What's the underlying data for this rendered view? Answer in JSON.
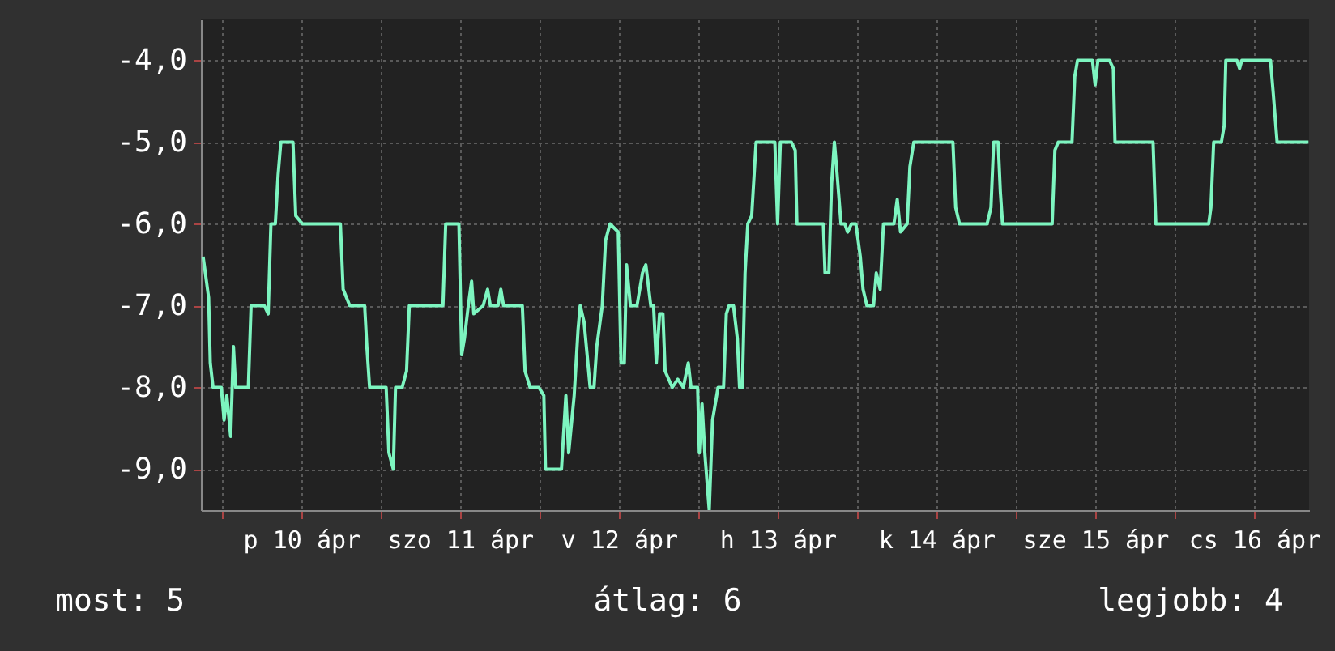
{
  "chart_data": {
    "type": "line",
    "color": "#7df5c0",
    "x": [
      "--04-09T21:10",
      "--04-09T21:30",
      "--04-09T22:00",
      "--04-09T22:15",
      "--04-09T22:40",
      "--04-09T23:55",
      "--04-10T00:20",
      "--04-10T00:45",
      "--04-10T01:20",
      "--04-10T01:45",
      "--04-10T02:05",
      "--04-10T04:00",
      "--04-10T04:25",
      "--04-10T06:25",
      "--04-10T07:00",
      "--04-10T07:25",
      "--04-10T08:05",
      "--04-10T08:30",
      "--04-10T08:55",
      "--04-10T10:45",
      "--04-10T11:10",
      "--04-10T12:10",
      "--04-10T17:55",
      "--04-10T18:20",
      "--04-10T19:20",
      "--04-10T21:35",
      "--04-10T21:55",
      "--04-10T22:20",
      "--04-11T00:50",
      "--04-11T01:15",
      "--04-11T01:55",
      "--04-11T02:15",
      "--04-11T03:15",
      "--04-11T03:55",
      "--04-11T04:20",
      "--04-11T09:25",
      "--04-11T09:50",
      "--04-11T11:50",
      "--04-11T12:15",
      "--04-11T12:40",
      "--04-11T13:15",
      "--04-11T13:45",
      "--04-11T14:05",
      "--04-11T15:30",
      "--04-11T16:10",
      "--04-11T16:35",
      "--04-11T17:45",
      "--04-11T18:10",
      "--04-11T18:35",
      "--04-11T21:25",
      "--04-11T21:50",
      "--04-11T22:35",
      "--04-11T23:55",
      "--04-12T00:40",
      "--04-12T00:55",
      "--04-12T03:20",
      "--04-12T04:00",
      "--04-12T04:25",
      "--04-12T05:15",
      "--04-12T05:50",
      "--04-12T06:10",
      "--04-12T06:45",
      "--04-12T07:40",
      "--04-12T08:15",
      "--04-12T08:40",
      "--04-12T09:30",
      "--04-12T10:00",
      "--04-12T10:40",
      "--04-12T11:55",
      "--04-12T12:20",
      "--04-12T12:50",
      "--04-12T13:10",
      "--04-12T13:45",
      "--04-12T14:45",
      "--04-12T15:35",
      "--04-12T16:05",
      "--04-12T16:50",
      "--04-12T17:15",
      "--04-12T17:40",
      "--04-12T18:10",
      "--04-12T18:40",
      "--04-12T19:00",
      "--04-12T20:05",
      "--04-12T20:55",
      "--04-12T21:45",
      "--04-12T22:30",
      "--04-12T22:55",
      "--04-12T23:55",
      "--04-13T00:10",
      "--04-13T00:35",
      "--04-13T01:00",
      "--04-13T01:40",
      "--04-13T02:10",
      "--04-13T03:00",
      "--04-13T03:50",
      "--04-13T04:15",
      "--04-13T04:40",
      "--04-13T05:20",
      "--04-13T05:55",
      "--04-13T06:15",
      "--04-13T06:40",
      "--04-13T07:05",
      "--04-13T07:30",
      "--04-13T08:05",
      "--04-13T08:45",
      "--04-13T11:35",
      "--04-13T12:00",
      "--04-13T12:25",
      "--04-13T14:05",
      "--04-13T14:40",
      "--04-13T14:55",
      "--04-13T18:55",
      "--04-13T19:10",
      "--04-13T19:45",
      "--04-13T20:10",
      "--04-13T20:35",
      "--04-13T21:00",
      "--04-13T21:35",
      "--04-13T22:10",
      "--04-13T22:35",
      "--04-13T23:10",
      "--04-13T23:50",
      "--04-14T00:30",
      "--04-14T00:55",
      "--04-14T01:30",
      "--04-14T02:30",
      "--04-14T02:55",
      "--04-14T03:30",
      "--04-14T04:00",
      "--04-14T05:35",
      "--04-14T06:05",
      "--04-14T06:35",
      "--04-14T07:35",
      "--04-14T08:00",
      "--04-14T08:35",
      "--04-14T14:30",
      "--04-14T14:55",
      "--04-14T15:30",
      "--04-14T19:40",
      "--04-14T20:15",
      "--04-14T20:40",
      "--04-14T21:20",
      "--04-14T21:40",
      "--04-14T22:00",
      "--04-15T05:30",
      "--04-15T05:55",
      "--04-15T06:25",
      "--04-15T08:30",
      "--04-15T08:55",
      "--04-15T09:20",
      "--04-15T11:35",
      "--04-15T12:00",
      "--04-15T12:25",
      "--04-15T14:10",
      "--04-15T14:45",
      "--04-15T15:00",
      "--04-15T20:45",
      "--04-15T21:10",
      "--04-16T05:10",
      "--04-16T05:30",
      "--04-16T05:55",
      "--04-16T07:05",
      "--04-16T07:30",
      "--04-16T07:45",
      "--04-16T09:25",
      "--04-16T09:50",
      "--04-16T10:10",
      "--04-16T14:30",
      "--04-16T14:55",
      "--04-16T15:30",
      "--04-16T20:15"
    ],
    "values": [
      -6.4,
      -6.6,
      -6.9,
      -7.7,
      -8.0,
      -8.0,
      -8.4,
      -8.1,
      -8.6,
      -7.5,
      -8.0,
      -8.0,
      -7.0,
      -7.0,
      -7.1,
      -6.0,
      -6.0,
      -5.4,
      -5.0,
      -5.0,
      -5.9,
      -6.0,
      -6.0,
      -6.8,
      -7.0,
      -7.0,
      -7.5,
      -8.0,
      -8.0,
      -8.8,
      -9.0,
      -8.0,
      -8.0,
      -7.8,
      -7.0,
      -7.0,
      -6.0,
      -6.0,
      -7.6,
      -7.4,
      -7.0,
      -6.7,
      -7.1,
      -7.0,
      -6.8,
      -7.0,
      -7.0,
      -6.8,
      -7.0,
      -7.0,
      -7.8,
      -8.0,
      -8.0,
      -8.1,
      -9.0,
      -9.0,
      -8.1,
      -8.8,
      -8.1,
      -7.3,
      -7.0,
      -7.2,
      -8.0,
      -8.0,
      -7.5,
      -7.0,
      -6.2,
      -6.0,
      -6.1,
      -7.7,
      -7.7,
      -6.5,
      -7.0,
      -7.0,
      -6.6,
      -6.5,
      -7.0,
      -7.0,
      -7.7,
      -7.1,
      -7.1,
      -7.8,
      -8.0,
      -7.9,
      -8.0,
      -7.7,
      -8.0,
      -8.0,
      -8.8,
      -8.2,
      -8.8,
      -9.5,
      -8.4,
      -8.0,
      -8.0,
      -7.1,
      -7.0,
      -7.0,
      -7.4,
      -8.0,
      -8.0,
      -6.6,
      -6.0,
      -5.9,
      -5.0,
      -5.0,
      -6.0,
      -5.0,
      -5.0,
      -5.1,
      -6.0,
      -6.0,
      -6.6,
      -6.6,
      -5.5,
      -5.0,
      -5.4,
      -6.0,
      -6.0,
      -6.1,
      -6.0,
      -6.0,
      -6.4,
      -6.8,
      -7.0,
      -7.0,
      -6.6,
      -6.8,
      -6.0,
      -6.0,
      -5.7,
      -6.1,
      -6.0,
      -5.3,
      -5.0,
      -5.0,
      -5.8,
      -6.0,
      -6.0,
      -5.8,
      -5.0,
      -5.0,
      -5.6,
      -6.0,
      -6.0,
      -5.1,
      -5.0,
      -5.0,
      -4.2,
      -4.0,
      -4.0,
      -4.3,
      -4.0,
      -4.0,
      -4.1,
      -5.0,
      -5.0,
      -6.0,
      -6.0,
      -5.8,
      -5.0,
      -5.0,
      -4.8,
      -4.0,
      -4.0,
      -4.1,
      -4.0,
      -4.0,
      -4.4,
      -5.0,
      -5.0
    ],
    "xlim": [
      "--04-09T20:50",
      "--04-16T20:20"
    ],
    "xticks": [
      {
        "value": "--04-10T00:00",
        "label": null
      },
      {
        "value": "--04-10T12:00",
        "label": "p 10 ápr"
      },
      {
        "value": "--04-11T00:00",
        "label": null
      },
      {
        "value": "--04-11T12:00",
        "label": "szo 11 ápr"
      },
      {
        "value": "--04-12T00:00",
        "label": null
      },
      {
        "value": "--04-12T12:00",
        "label": "v 12 ápr"
      },
      {
        "value": "--04-13T00:00",
        "label": null
      },
      {
        "value": "--04-13T12:00",
        "label": "h 13 ápr"
      },
      {
        "value": "--04-14T00:00",
        "label": null
      },
      {
        "value": "--04-14T12:00",
        "label": "k 14 ápr"
      },
      {
        "value": "--04-15T00:00",
        "label": null
      },
      {
        "value": "--04-15T12:00",
        "label": "sze 15 ápr"
      },
      {
        "value": "--04-16T00:00",
        "label": null
      },
      {
        "value": "--04-16T12:00",
        "label": "cs 16 ápr"
      }
    ],
    "ylim": [
      -9.5,
      -3.5
    ],
    "yticks": [
      {
        "value": -9,
        "label": "-9,0"
      },
      {
        "value": -8,
        "label": "-8,0"
      },
      {
        "value": -7,
        "label": "-7,0"
      },
      {
        "value": -6,
        "label": "-6,0"
      },
      {
        "value": -5,
        "label": "-5,0"
      },
      {
        "value": -4,
        "label": "-4,0"
      }
    ],
    "grid": true,
    "annotations": [
      "most: 5",
      "átlag: 6",
      "legjobb: 4"
    ]
  }
}
